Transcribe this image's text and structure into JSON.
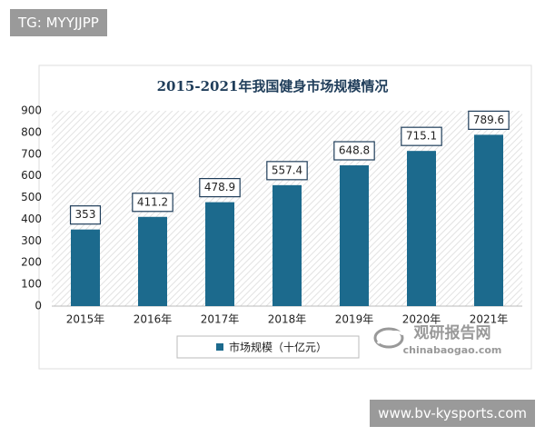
{
  "chart_data": {
    "type": "bar",
    "title": "2015-2021年我国健身市场规模情况",
    "categories": [
      "2015年",
      "2016年",
      "2017年",
      "2018年",
      "2019年",
      "2020年",
      "2021年"
    ],
    "series": [
      {
        "name": "市场规模（十亿元）",
        "color": "#1c6a8d",
        "values": [
          353,
          411.2,
          478.9,
          557.4,
          648.8,
          715.1,
          789.6
        ]
      }
    ],
    "ylim": [
      0,
      900
    ],
    "yticks": [
      0,
      100,
      200,
      300,
      400,
      500,
      600,
      700,
      800,
      900
    ],
    "legend": "bottom"
  },
  "watermark_top": "TG: MYYJJPP",
  "watermark_bottom": "www.bv-kysports.com",
  "logo": {
    "name": "观研报告网",
    "url": "chinabaogao.com"
  }
}
